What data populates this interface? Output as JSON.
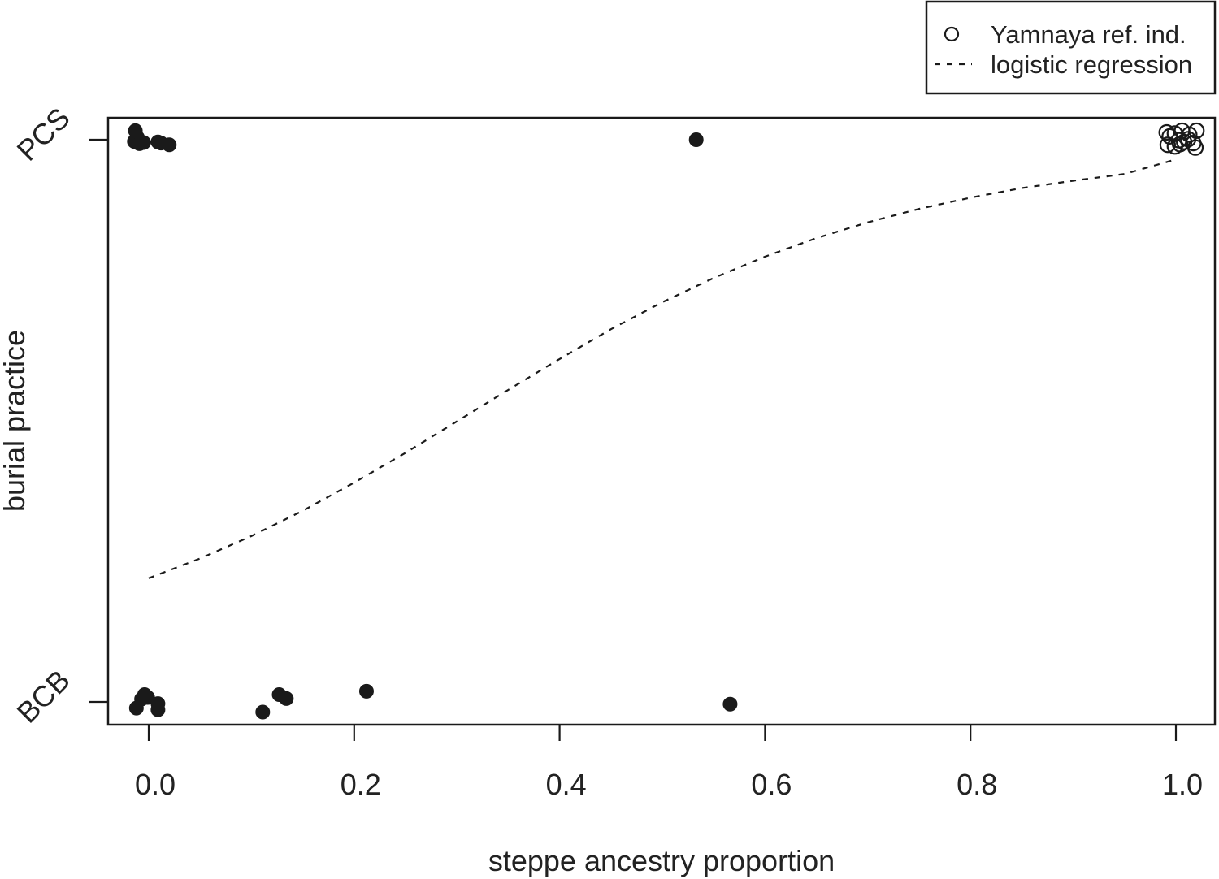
{
  "chart_data": {
    "type": "scatter",
    "title": "",
    "xlabel": "steppe ancestry proportion",
    "ylabel": "burial practice",
    "xlim": [
      -0.02,
      1.03
    ],
    "ylim": [
      -0.04,
      1.04
    ],
    "xticks": [
      0.0,
      0.2,
      0.4,
      0.6,
      0.8,
      1.0
    ],
    "xtick_labels": [
      "0.0",
      "0.2",
      "0.4",
      "0.6",
      "0.8",
      "1.0"
    ],
    "yticks": [
      0,
      1
    ],
    "ytick_labels": [
      "BCB",
      "PCS"
    ],
    "grid": false,
    "legend_position": "top-right, outside plot area",
    "legend": [
      {
        "label": "Yamnaya ref. ind.",
        "symbol": "open-circle"
      },
      {
        "label": "logistic regression",
        "symbol": "dashed-line"
      }
    ],
    "series": [
      {
        "marker": "filled-circle",
        "color": "#1a1a1a",
        "points": [
          {
            "x": -0.013,
            "y": 1.016
          },
          {
            "x": -0.011,
            "y": 1.004
          },
          {
            "x": -0.014,
            "y": 0.997
          },
          {
            "x": -0.009,
            "y": 0.993
          },
          {
            "x": -0.005,
            "y": 0.995
          },
          {
            "x": 0.009,
            "y": 0.996
          },
          {
            "x": 0.012,
            "y": 0.994
          },
          {
            "x": 0.02,
            "y": 0.991
          },
          {
            "x": 0.533,
            "y": 1.0
          },
          {
            "x": -0.012,
            "y": -0.011
          },
          {
            "x": -0.007,
            "y": 0.005
          },
          {
            "x": -0.004,
            "y": 0.013
          },
          {
            "x": -0.001,
            "y": 0.008
          },
          {
            "x": 0.009,
            "y": -0.003
          },
          {
            "x": 0.009,
            "y": -0.014
          },
          {
            "x": 0.111,
            "y": -0.018
          },
          {
            "x": 0.127,
            "y": 0.013
          },
          {
            "x": 0.134,
            "y": 0.006
          },
          {
            "x": 0.212,
            "y": 0.019
          },
          {
            "x": 0.566,
            "y": -0.004
          }
        ]
      },
      {
        "name": "Yamnaya ref. ind.",
        "marker": "open-circle",
        "color": "#1a1a1a",
        "points": [
          {
            "x": 0.991,
            "y": 1.013
          },
          {
            "x": 0.994,
            "y": 1.006
          },
          {
            "x": 0.999,
            "y": 1.011
          },
          {
            "x": 1.006,
            "y": 1.016
          },
          {
            "x": 1.013,
            "y": 1.009
          },
          {
            "x": 1.02,
            "y": 1.016
          },
          {
            "x": 1.003,
            "y": 0.999
          },
          {
            "x": 1.008,
            "y": 0.996
          },
          {
            "x": 1.012,
            "y": 1.001
          },
          {
            "x": 0.992,
            "y": 0.991
          },
          {
            "x": 0.999,
            "y": 0.988
          },
          {
            "x": 1.004,
            "y": 0.992
          },
          {
            "x": 1.017,
            "y": 0.994
          },
          {
            "x": 1.019,
            "y": 0.986
          }
        ]
      },
      {
        "name": "logistic regression",
        "type": "line",
        "style": "dashed",
        "color": "#1a1a1a",
        "x": [
          0.0,
          0.05,
          0.1,
          0.15,
          0.2,
          0.25,
          0.3,
          0.35,
          0.4,
          0.45,
          0.5,
          0.55,
          0.6,
          0.65,
          0.7,
          0.75,
          0.8,
          0.85,
          0.9,
          0.95,
          1.0
        ],
        "y": [
          0.22,
          0.255,
          0.295,
          0.34,
          0.39,
          0.443,
          0.499,
          0.555,
          0.61,
          0.663,
          0.711,
          0.754,
          0.792,
          0.825,
          0.853,
          0.877,
          0.897,
          0.914,
          0.927,
          0.939,
          0.965
        ]
      }
    ]
  }
}
